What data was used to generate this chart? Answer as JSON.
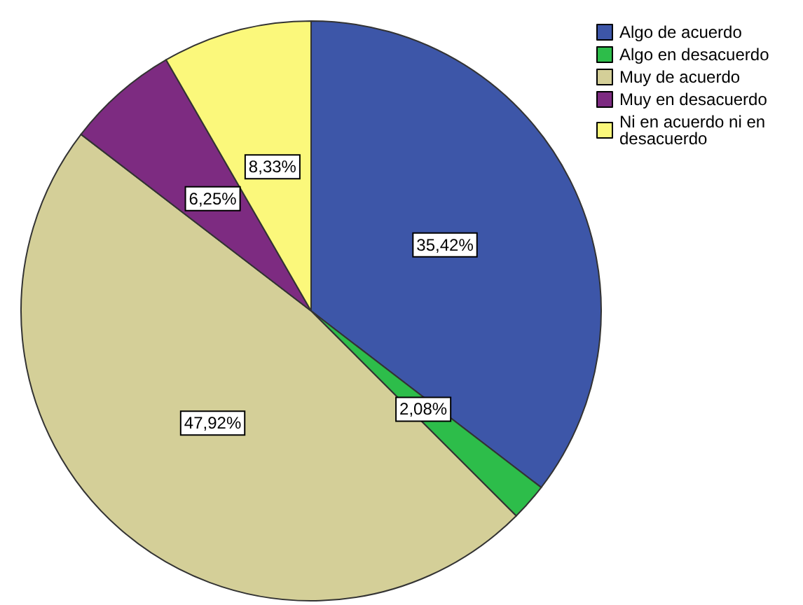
{
  "chart_data": {
    "type": "pie",
    "categories": [
      "Algo de acuerdo",
      "Algo en desacuerdo",
      "Muy de acuerdo",
      "Muy en desacuerdo",
      "Ni en acuerdo ni en desacuerdo"
    ],
    "values": [
      35.42,
      2.08,
      47.92,
      6.25,
      8.33
    ],
    "value_labels": [
      "35,42%",
      "2,08%",
      "47,92%",
      "6,25%",
      "8,33%"
    ],
    "colors": [
      "#3d56a8",
      "#2dbd4a",
      "#d4cf98",
      "#7d2b81",
      "#fbf87b"
    ],
    "legend": "top right"
  }
}
